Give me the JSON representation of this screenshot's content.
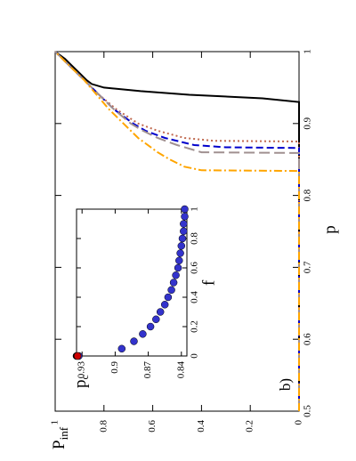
{
  "chart_data": [
    {
      "type": "line",
      "xlabel": "p",
      "ylabel_main": "P",
      "ylabel_sub": "inf",
      "panel_label": "b)",
      "xlim": [
        0.5,
        1.0
      ],
      "ylim": [
        0,
        1.0
      ],
      "x_ticks": [
        "0.5",
        "0.6",
        "0.7",
        "0.8",
        "0.9",
        "1"
      ],
      "y_ticks": [
        "0",
        "0.2",
        "0.4",
        "0.6",
        "0.8",
        "1"
      ],
      "grid": false,
      "series": [
        {
          "color": "#000000",
          "dash": "solid",
          "x": [
            0.5,
            0.93,
            0.935,
            0.94,
            0.945,
            0.95,
            0.955,
            0.96,
            0.97,
            0.98,
            0.99,
            1.0
          ],
          "y": [
            0,
            0,
            0.15,
            0.45,
            0.65,
            0.8,
            0.85,
            0.87,
            0.9,
            0.93,
            0.96,
            1.0
          ]
        },
        {
          "color": "#C06A50",
          "dash": "dotted",
          "x": [
            0.5,
            0.875,
            0.876,
            0.88,
            0.89,
            0.9,
            0.92,
            0.94,
            0.96,
            0.98,
            1.0
          ],
          "y": [
            0,
            0,
            0.35,
            0.47,
            0.58,
            0.66,
            0.75,
            0.82,
            0.88,
            0.94,
            1.0
          ]
        },
        {
          "color": "#0000CC",
          "dash": "dashed",
          "x": [
            0.5,
            0.866,
            0.867,
            0.87,
            0.88,
            0.89,
            0.9,
            0.92,
            0.94,
            0.96,
            0.98,
            1.0
          ],
          "y": [
            0,
            0,
            0.3,
            0.43,
            0.55,
            0.63,
            0.68,
            0.76,
            0.82,
            0.88,
            0.94,
            1.0
          ]
        },
        {
          "color": "#A09090",
          "dash": "longdash",
          "x": [
            0.5,
            0.859,
            0.86,
            0.87,
            0.88,
            0.89,
            0.9,
            0.92,
            0.94,
            0.96,
            0.98,
            1.0
          ],
          "y": [
            0,
            0,
            0.4,
            0.5,
            0.58,
            0.64,
            0.69,
            0.76,
            0.82,
            0.88,
            0.94,
            1.0
          ]
        },
        {
          "color": "#FFA500",
          "dash": "dashdot",
          "x": [
            0.5,
            0.834,
            0.835,
            0.84,
            0.85,
            0.86,
            0.88,
            0.9,
            0.92,
            0.94,
            0.96,
            0.98,
            1.0
          ],
          "y": [
            0,
            0,
            0.4,
            0.47,
            0.53,
            0.58,
            0.66,
            0.72,
            0.78,
            0.83,
            0.88,
            0.94,
            1.0
          ]
        }
      ]
    },
    {
      "type": "scatter",
      "inset": true,
      "xlabel": "f",
      "ylabel_main": "p",
      "ylabel_sub": "c",
      "xlim": [
        0,
        1.0
      ],
      "ylim": [
        0.835,
        0.935
      ],
      "x_ticks": [
        "0",
        "0.2",
        "0.4",
        "0.6",
        "0.8",
        "1"
      ],
      "y_ticks": [
        "0.84",
        "0.87",
        "0.9",
        "0.93"
      ],
      "grid": false,
      "series": [
        {
          "color": "#3333CC",
          "x": [
            0.0,
            0.05,
            0.1,
            0.15,
            0.2,
            0.25,
            0.3,
            0.35,
            0.4,
            0.45,
            0.5,
            0.55,
            0.6,
            0.65,
            0.7,
            0.75,
            0.8,
            0.85,
            0.9,
            0.95,
            1.0
          ],
          "y": [
            0.933,
            0.894,
            0.883,
            0.875,
            0.868,
            0.863,
            0.859,
            0.855,
            0.852,
            0.849,
            0.847,
            0.845,
            0.843,
            0.842,
            0.841,
            0.84,
            0.839,
            0.838,
            0.838,
            0.837,
            0.837
          ]
        },
        {
          "color": "#000000",
          "x": [
            0.0
          ],
          "y": [
            0.935
          ]
        },
        {
          "color": "#CC0000",
          "x": [
            0.0
          ],
          "y": [
            0.934
          ]
        }
      ]
    }
  ]
}
